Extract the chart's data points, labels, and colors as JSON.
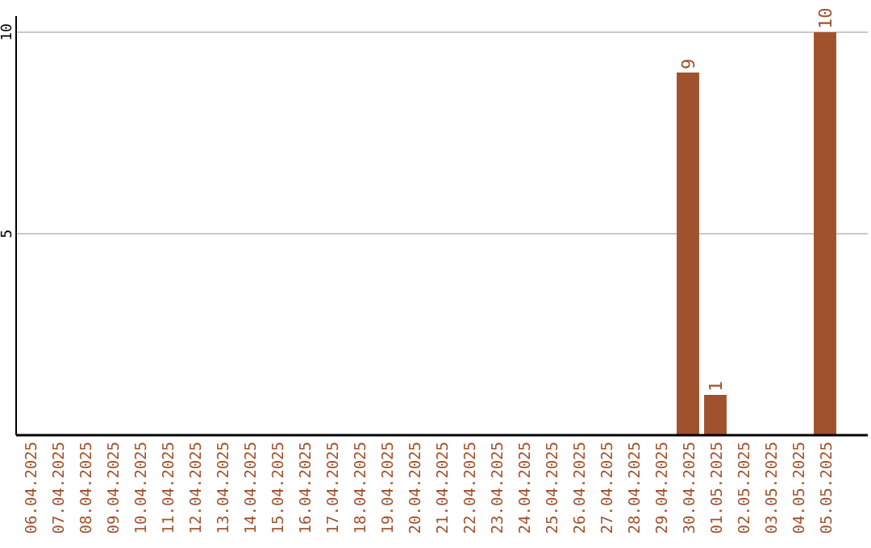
{
  "chart_data": {
    "type": "bar",
    "categories": [
      "06.04.2025",
      "07.04.2025",
      "08.04.2025",
      "09.04.2025",
      "10.04.2025",
      "11.04.2025",
      "12.04.2025",
      "13.04.2025",
      "14.04.2025",
      "15.04.2025",
      "16.04.2025",
      "17.04.2025",
      "18.04.2025",
      "19.04.2025",
      "20.04.2025",
      "21.04.2025",
      "22.04.2025",
      "23.04.2025",
      "24.04.2025",
      "25.04.2025",
      "26.04.2025",
      "27.04.2025",
      "28.04.2025",
      "29.04.2025",
      "30.04.2025",
      "01.05.2025",
      "02.05.2025",
      "03.05.2025",
      "04.05.2025",
      "05.05.2025"
    ],
    "values": [
      0,
      0,
      0,
      0,
      0,
      0,
      0,
      0,
      0,
      0,
      0,
      0,
      0,
      0,
      0,
      0,
      0,
      0,
      0,
      0,
      0,
      0,
      0,
      0,
      9,
      1,
      0,
      0,
      0,
      10
    ],
    "value_labels": [
      null,
      null,
      null,
      null,
      null,
      null,
      null,
      null,
      null,
      null,
      null,
      null,
      null,
      null,
      null,
      null,
      null,
      null,
      null,
      null,
      null,
      null,
      null,
      null,
      "9",
      "1",
      null,
      null,
      null,
      "10"
    ],
    "color": "#a0522d",
    "ylim": [
      0,
      10.4
    ],
    "yticks": [
      5,
      10
    ],
    "grid": "y"
  }
}
